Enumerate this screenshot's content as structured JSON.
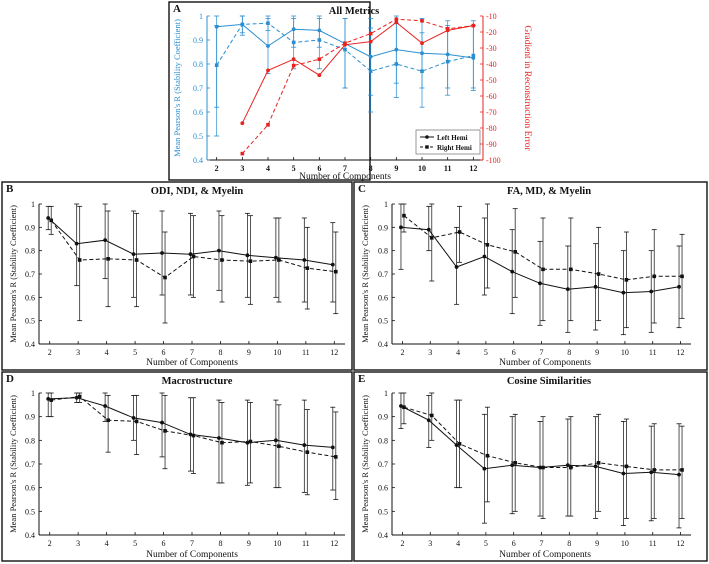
{
  "figure": {
    "colors": {
      "blue": "#2a8fd0",
      "red": "#e8231f",
      "black": "#111111"
    },
    "left_legend": "Left Hemi",
    "right_legend": "Right Hemi"
  },
  "chart_data": [
    {
      "id": "A",
      "panel_letter": "A",
      "type": "line",
      "title": "All Metrics",
      "xlabel": "Number of Components",
      "ylabel": "Mean Pearson's R (Stability Coefficient)",
      "y2label": "Gradient in Reconstruction Error",
      "x": [
        2,
        3,
        4,
        5,
        6,
        7,
        8,
        9,
        10,
        11,
        12
      ],
      "ylim": [
        0.4,
        1.0
      ],
      "yticks": [
        "0.4",
        "0.5",
        "0.6",
        "0.7",
        "0.8",
        "0.9",
        "1"
      ],
      "y2lim": [
        -100,
        -10
      ],
      "y2ticks": [
        "-100",
        "-90",
        "-80",
        "-70",
        "-60",
        "-50",
        "-40",
        "-30",
        "-20",
        "-10"
      ],
      "series": [
        {
          "name": "Left Hemi",
          "axis": "left",
          "color": "blue",
          "dash": false,
          "marker": "circle",
          "values": [
            0.955,
            0.965,
            0.875,
            0.945,
            0.94,
            0.885,
            0.83,
            0.86,
            0.845,
            0.84,
            0.825
          ],
          "err_low": [
            0.5,
            0.93,
            0.76,
            0.87,
            0.87,
            0.7,
            0.67,
            0.72,
            0.7,
            0.7,
            0.69
          ],
          "err_high": [
            1.0,
            1.0,
            0.99,
            1.0,
            1.0,
            0.99,
            0.99,
            1.0,
            0.99,
            0.98,
            0.96
          ]
        },
        {
          "name": "Right Hemi",
          "axis": "left",
          "color": "blue",
          "dash": true,
          "marker": "square",
          "values": [
            0.795,
            0.965,
            0.97,
            0.89,
            0.9,
            0.86,
            0.77,
            0.8,
            0.77,
            0.81,
            0.835
          ],
          "err_low": [
            0.62,
            0.92,
            0.94,
            0.78,
            0.78,
            0.7,
            0.6,
            0.66,
            0.62,
            0.67,
            0.7
          ],
          "err_high": [
            0.96,
            1.0,
            1.0,
            0.99,
            0.99,
            0.99,
            0.95,
            0.97,
            0.93,
            0.96,
            0.98
          ]
        },
        {
          "name": "Left Hemi",
          "axis": "right",
          "color": "red",
          "dash": false,
          "marker": "circle",
          "values": [
            null,
            -77,
            -44,
            -37,
            -47,
            -28,
            -26,
            -14,
            -27,
            -19,
            -16
          ]
        },
        {
          "name": "Right Hemi",
          "axis": "right",
          "color": "red",
          "dash": true,
          "marker": "square",
          "values": [
            null,
            -96,
            -78,
            -41,
            -37,
            -27,
            -21,
            -12,
            -13,
            -18,
            -16
          ]
        }
      ]
    },
    {
      "id": "B",
      "panel_letter": "B",
      "type": "line",
      "title": "ODI, NDI, & Myelin",
      "xlabel": "Number of Components",
      "ylabel": "Mean Pearson's R (Stability Coefficient)",
      "x": [
        2,
        3,
        4,
        5,
        6,
        7,
        8,
        9,
        10,
        11,
        12
      ],
      "ylim": [
        0.4,
        1.0
      ],
      "yticks": [
        "0.4",
        "0.5",
        "0.6",
        "0.7",
        "0.8",
        "0.9",
        "1"
      ],
      "series": [
        {
          "name": "Left Hemi",
          "dash": false,
          "marker": "circle",
          "values": [
            0.94,
            0.83,
            0.845,
            0.785,
            0.79,
            0.785,
            0.8,
            0.78,
            0.77,
            0.76,
            0.74
          ],
          "err_low": [
            0.89,
            0.65,
            0.68,
            0.6,
            0.61,
            0.61,
            0.63,
            0.6,
            0.6,
            0.58,
            0.58
          ],
          "err_high": [
            0.99,
            1.0,
            1.0,
            0.97,
            0.97,
            0.96,
            0.97,
            0.96,
            0.94,
            0.94,
            0.92
          ]
        },
        {
          "name": "Right Hemi",
          "dash": true,
          "marker": "square",
          "values": [
            0.93,
            0.76,
            0.765,
            0.76,
            0.685,
            0.775,
            0.76,
            0.755,
            0.76,
            0.725,
            0.71
          ],
          "err_low": [
            0.87,
            0.5,
            0.56,
            0.56,
            0.49,
            0.6,
            0.58,
            0.57,
            0.58,
            0.55,
            0.53
          ],
          "err_high": [
            0.99,
            0.99,
            0.97,
            0.96,
            0.88,
            0.95,
            0.95,
            0.95,
            0.94,
            0.9,
            0.88
          ]
        }
      ]
    },
    {
      "id": "C",
      "panel_letter": "C",
      "type": "line",
      "title": "FA, MD, & Myelin",
      "xlabel": "Number of Components",
      "ylabel": "Mean Pearson's R (Stability Coefficient)",
      "x": [
        2,
        3,
        4,
        5,
        6,
        7,
        8,
        9,
        10,
        11,
        12
      ],
      "ylim": [
        0.4,
        1.0
      ],
      "yticks": [
        "0.4",
        "0.5",
        "0.6",
        "0.7",
        "0.8",
        "0.9",
        "1"
      ],
      "series": [
        {
          "name": "Left Hemi",
          "dash": false,
          "marker": "circle",
          "values": [
            0.9,
            0.89,
            0.73,
            0.775,
            0.71,
            0.66,
            0.635,
            0.645,
            0.62,
            0.625,
            0.645
          ],
          "err_low": [
            0.72,
            0.8,
            0.57,
            0.61,
            0.53,
            0.48,
            0.45,
            0.46,
            0.44,
            0.45,
            0.47
          ],
          "err_high": [
            1.0,
            0.99,
            0.9,
            0.94,
            0.89,
            0.84,
            0.82,
            0.83,
            0.8,
            0.8,
            0.82
          ]
        },
        {
          "name": "Right Hemi",
          "dash": true,
          "marker": "square",
          "values": [
            0.95,
            0.855,
            0.88,
            0.825,
            0.795,
            0.72,
            0.72,
            0.7,
            0.675,
            0.69,
            0.69
          ],
          "err_low": [
            0.88,
            0.67,
            0.75,
            0.64,
            0.6,
            0.5,
            0.5,
            0.5,
            0.47,
            0.49,
            0.51
          ],
          "err_high": [
            1.0,
            1.0,
            0.99,
            1.0,
            0.98,
            0.94,
            0.94,
            0.9,
            0.88,
            0.89,
            0.87
          ]
        }
      ]
    },
    {
      "id": "D",
      "panel_letter": "D",
      "type": "line",
      "title": "Macrostructure",
      "xlabel": "Number of Components",
      "ylabel": "Mean Pearson's R (Stability Coefficient)",
      "x": [
        2,
        3,
        4,
        5,
        6,
        7,
        8,
        9,
        10,
        11,
        12
      ],
      "ylim": [
        0.4,
        1.0
      ],
      "yticks": [
        "0.4",
        "0.5",
        "0.6",
        "0.7",
        "0.8",
        "0.9",
        "1"
      ],
      "series": [
        {
          "name": "Left Hemi",
          "dash": false,
          "marker": "circle",
          "values": [
            0.975,
            0.98,
            0.945,
            0.895,
            0.875,
            0.825,
            0.81,
            0.79,
            0.8,
            0.78,
            0.77
          ],
          "err_low": [
            0.9,
            0.96,
            0.88,
            0.8,
            0.73,
            0.67,
            0.62,
            0.61,
            0.6,
            0.58,
            0.59
          ],
          "err_high": [
            1.0,
            1.0,
            1.0,
            0.99,
            1.0,
            0.98,
            0.97,
            0.97,
            0.97,
            0.97,
            0.94
          ]
        },
        {
          "name": "Right Hemi",
          "dash": true,
          "marker": "square",
          "values": [
            0.97,
            0.985,
            0.885,
            0.88,
            0.84,
            0.82,
            0.79,
            0.795,
            0.775,
            0.75,
            0.73
          ],
          "err_low": [
            0.9,
            0.96,
            0.75,
            0.74,
            0.68,
            0.66,
            0.62,
            0.62,
            0.6,
            0.57,
            0.55
          ],
          "err_high": [
            1.0,
            1.0,
            0.99,
            0.99,
            0.99,
            0.98,
            0.96,
            0.96,
            0.95,
            0.93,
            0.92
          ]
        }
      ]
    },
    {
      "id": "E",
      "panel_letter": "E",
      "type": "line",
      "title": "Cosine Similarities",
      "xlabel": "Number of Components",
      "ylabel": "Mean Pearson's R (Stability Coefficient)",
      "x": [
        2,
        3,
        4,
        5,
        6,
        7,
        8,
        9,
        10,
        11,
        12
      ],
      "ylim": [
        0.4,
        1.0
      ],
      "yticks": [
        "0.4",
        "0.5",
        "0.6",
        "0.7",
        "0.8",
        "0.9",
        "1"
      ],
      "series": [
        {
          "name": "Left Hemi",
          "dash": false,
          "marker": "circle",
          "values": [
            0.945,
            0.885,
            0.78,
            0.68,
            0.695,
            0.685,
            0.695,
            0.69,
            0.66,
            0.665,
            0.655
          ],
          "err_low": [
            0.85,
            0.77,
            0.6,
            0.45,
            0.49,
            0.48,
            0.48,
            0.47,
            0.44,
            0.46,
            0.43
          ],
          "err_high": [
            1.0,
            0.99,
            0.97,
            0.91,
            0.9,
            0.88,
            0.89,
            0.9,
            0.88,
            0.86,
            0.87
          ]
        },
        {
          "name": "Right Hemi",
          "dash": true,
          "marker": "square",
          "values": [
            0.94,
            0.905,
            0.785,
            0.735,
            0.705,
            0.685,
            0.685,
            0.705,
            0.69,
            0.675,
            0.675
          ],
          "err_low": [
            0.87,
            0.8,
            0.6,
            0.54,
            0.5,
            0.47,
            0.48,
            0.5,
            0.47,
            0.47,
            0.47
          ],
          "err_high": [
            1.0,
            1.0,
            0.97,
            0.94,
            0.91,
            0.9,
            0.9,
            0.91,
            0.89,
            0.87,
            0.86
          ]
        }
      ]
    }
  ]
}
